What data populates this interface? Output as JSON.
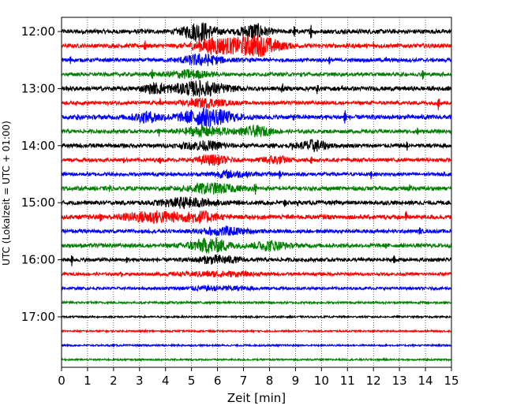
{
  "chart_data": {
    "type": "line",
    "subtype": "helicorder-seismogram",
    "title": "",
    "xlabel": "Zeit  [min]",
    "ylabel": "UTC (Lokalzeit = UTC + 01:00)",
    "xlim": [
      0,
      15
    ],
    "x_ticks": [
      0,
      1,
      2,
      3,
      4,
      5,
      6,
      7,
      8,
      9,
      10,
      11,
      12,
      13,
      14,
      15
    ],
    "y_tick_labels": [
      "12:00",
      "13:00",
      "14:00",
      "15:00",
      "16:00",
      "17:00"
    ],
    "grid": {
      "x": true,
      "style": "dotted"
    },
    "colors": [
      "#000000",
      "#ff0000",
      "#0000ff",
      "#008000"
    ],
    "traces": [
      {
        "start": "12:00",
        "color": "#000000",
        "amp": 0.3,
        "spikes": [
          [
            9.6,
            0.9
          ],
          [
            8.95,
            0.6
          ],
          [
            3.1,
            0.3
          ]
        ],
        "bursts": [
          [
            5.3,
            0.6,
            1.2
          ],
          [
            7.4,
            0.5,
            1.0
          ]
        ]
      },
      {
        "start": "12:15",
        "color": "#ff0000",
        "amp": 0.28,
        "spikes": [
          [
            3.2,
            0.7
          ],
          [
            12.0,
            0.4
          ]
        ],
        "bursts": [
          [
            5.9,
            0.8,
            1.0
          ],
          [
            7.5,
            0.9,
            1.3
          ]
        ]
      },
      {
        "start": "12:30",
        "color": "#0000ff",
        "amp": 0.25,
        "spikes": [
          [
            0.35,
            0.5
          ],
          [
            10.3,
            0.4
          ],
          [
            12.5,
            0.3
          ]
        ],
        "bursts": [
          [
            5.4,
            0.8,
            0.7
          ]
        ]
      },
      {
        "start": "12:45",
        "color": "#008000",
        "amp": 0.25,
        "spikes": [
          [
            3.5,
            0.6
          ],
          [
            13.9,
            0.6
          ],
          [
            9.2,
            0.3
          ]
        ],
        "bursts": [
          [
            4.9,
            0.8,
            0.5
          ]
        ]
      },
      {
        "start": "13:00",
        "color": "#000000",
        "amp": 0.3,
        "spikes": [
          [
            8.5,
            0.6
          ],
          [
            9.85,
            0.8
          ],
          [
            10.8,
            0.4
          ]
        ],
        "bursts": [
          [
            5.3,
            1.0,
            0.9
          ],
          [
            3.6,
            0.5,
            0.5
          ]
        ]
      },
      {
        "start": "13:15",
        "color": "#ff0000",
        "amp": 0.25,
        "spikes": [
          [
            3.8,
            0.6
          ],
          [
            14.5,
            0.9
          ]
        ],
        "bursts": [
          [
            5.5,
            0.8,
            0.5
          ]
        ]
      },
      {
        "start": "13:30",
        "color": "#0000ff",
        "amp": 0.3,
        "spikes": [
          [
            10.9,
            0.9
          ],
          [
            8.9,
            0.4
          ],
          [
            0.6,
            0.3
          ]
        ],
        "bursts": [
          [
            5.6,
            1.0,
            1.1
          ],
          [
            3.3,
            0.6,
            0.6
          ]
        ]
      },
      {
        "start": "13:45",
        "color": "#008000",
        "amp": 0.25,
        "spikes": [
          [
            3.75,
            0.5
          ],
          [
            13.7,
            0.5
          ]
        ],
        "bursts": [
          [
            5.5,
            0.9,
            0.6
          ],
          [
            7.5,
            0.6,
            0.6
          ]
        ]
      },
      {
        "start": "14:00",
        "color": "#000000",
        "amp": 0.28,
        "spikes": [
          [
            8.9,
            0.5
          ],
          [
            13.3,
            0.5
          ]
        ],
        "bursts": [
          [
            5.5,
            0.8,
            0.5
          ],
          [
            9.7,
            0.5,
            0.7
          ]
        ]
      },
      {
        "start": "14:15",
        "color": "#ff0000",
        "amp": 0.25,
        "spikes": [
          [
            2.4,
            0.4
          ],
          [
            3.8,
            0.4
          ],
          [
            9.6,
            0.5
          ]
        ],
        "bursts": [
          [
            5.8,
            0.6,
            0.6
          ],
          [
            8.2,
            0.5,
            0.5
          ]
        ]
      },
      {
        "start": "14:30",
        "color": "#0000ff",
        "amp": 0.25,
        "spikes": [
          [
            8.4,
            0.6
          ],
          [
            11.9,
            0.5
          ]
        ],
        "bursts": [
          [
            6.5,
            0.7,
            0.4
          ]
        ]
      },
      {
        "start": "14:45",
        "color": "#008000",
        "amp": 0.28,
        "spikes": [
          [
            1.85,
            0.5
          ],
          [
            7.45,
            0.7
          ],
          [
            13.4,
            0.5
          ]
        ],
        "bursts": [
          [
            5.8,
            1.0,
            0.6
          ]
        ]
      },
      {
        "start": "15:00",
        "color": "#000000",
        "amp": 0.28,
        "spikes": [
          [
            8.6,
            0.7
          ],
          [
            9.1,
            0.4
          ]
        ],
        "bursts": [
          [
            4.8,
            1.0,
            0.6
          ]
        ]
      },
      {
        "start": "15:15",
        "color": "#ff0000",
        "amp": 0.3,
        "spikes": [
          [
            13.25,
            0.7
          ],
          [
            1.5,
            0.4
          ]
        ],
        "bursts": [
          [
            3.6,
            1.2,
            0.7
          ],
          [
            5.4,
            0.6,
            0.6
          ]
        ]
      },
      {
        "start": "15:30",
        "color": "#0000ff",
        "amp": 0.25,
        "spikes": [
          [
            13.8,
            0.7
          ],
          [
            9.8,
            0.3
          ]
        ],
        "bursts": [
          [
            6.2,
            0.9,
            0.5
          ]
        ]
      },
      {
        "start": "15:45",
        "color": "#008000",
        "amp": 0.28,
        "spikes": [
          [
            12.5,
            0.4
          ]
        ],
        "bursts": [
          [
            5.7,
            0.8,
            0.9
          ],
          [
            8.0,
            0.6,
            0.6
          ]
        ]
      },
      {
        "start": "16:00",
        "color": "#000000",
        "amp": 0.25,
        "spikes": [
          [
            0.4,
            0.8
          ],
          [
            12.8,
            0.5
          ],
          [
            2.5,
            0.3
          ]
        ],
        "bursts": [
          [
            6.0,
            0.8,
            0.5
          ]
        ]
      },
      {
        "start": "16:15",
        "color": "#ff0000",
        "amp": 0.2,
        "spikes": [
          [
            2.3,
            0.3
          ]
        ],
        "bursts": [
          [
            6.0,
            1.5,
            0.3
          ]
        ]
      },
      {
        "start": "16:30",
        "color": "#0000ff",
        "amp": 0.18,
        "spikes": [],
        "bursts": [
          [
            6.0,
            1.5,
            0.25
          ]
        ]
      },
      {
        "start": "16:45",
        "color": "#008000",
        "amp": 0.15,
        "spikes": [],
        "bursts": []
      },
      {
        "start": "17:00",
        "color": "#000000",
        "amp": 0.12,
        "spikes": [],
        "bursts": []
      },
      {
        "start": "17:15",
        "color": "#ff0000",
        "amp": 0.12,
        "spikes": [],
        "bursts": []
      },
      {
        "start": "17:30",
        "color": "#0000ff",
        "amp": 0.12,
        "spikes": [],
        "bursts": []
      },
      {
        "start": "17:45",
        "color": "#008000",
        "amp": 0.12,
        "spikes": [],
        "bursts": []
      }
    ]
  }
}
